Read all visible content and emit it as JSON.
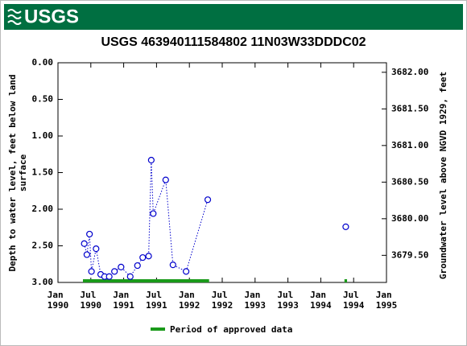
{
  "header": {
    "logo": "USGS"
  },
  "chart_data": {
    "type": "scatter",
    "title": "USGS 463940111584802 11N03W33DDDC02",
    "ylabel": [
      "Depth to water level, feet below land",
      "surface"
    ],
    "y2label": "Groundwater level above NGVD 1929, feet",
    "xlim": [
      1990,
      1995
    ],
    "xticks": [
      {
        "value": 1990,
        "label": "Jan 1990"
      },
      {
        "value": 1990.5,
        "label": "Jul 1990"
      },
      {
        "value": 1991,
        "label": "Jan 1991"
      },
      {
        "value": 1991.5,
        "label": "Jul 1991"
      },
      {
        "value": 1992,
        "label": "Jan 1992"
      },
      {
        "value": 1992.5,
        "label": "Jul 1992"
      },
      {
        "value": 1993,
        "label": "Jan 1993"
      },
      {
        "value": 1993.5,
        "label": "Jul 1993"
      },
      {
        "value": 1994,
        "label": "Jan 1994"
      },
      {
        "value": 1994.5,
        "label": "Jul 1994"
      },
      {
        "value": 1995,
        "label": "Jan 1995"
      }
    ],
    "ylim": [
      0,
      3
    ],
    "yticks": [
      {
        "value": 0,
        "label": "0.00"
      },
      {
        "value": 0.5,
        "label": "0.50"
      },
      {
        "value": 1,
        "label": "1.00"
      },
      {
        "value": 1.5,
        "label": "1.50"
      },
      {
        "value": 2,
        "label": "2.00"
      },
      {
        "value": 2.5,
        "label": "2.50"
      },
      {
        "value": 3,
        "label": "3.00"
      }
    ],
    "y2lim": [
      3682.13,
      3679.13
    ],
    "y2ticks": [
      {
        "value": 3682,
        "label": "3682.00"
      },
      {
        "value": 3681.5,
        "label": "3681.50"
      },
      {
        "value": 3681,
        "label": "3681.00"
      },
      {
        "value": 3680.5,
        "label": "3680.50"
      },
      {
        "value": 3680,
        "label": "3680.00"
      },
      {
        "value": 3679.5,
        "label": "3679.50"
      }
    ],
    "x": [
      1990.4,
      1990.44,
      1990.48,
      1990.51,
      1990.58,
      1990.65,
      1990.71,
      1990.78,
      1990.86,
      1990.96,
      1991.1,
      1991.21,
      1991.29,
      1991.38,
      1991.42,
      1991.45,
      1991.64,
      1991.75,
      1991.95,
      1992.28,
      1994.38
    ],
    "values": [
      2.47,
      2.62,
      2.34,
      2.85,
      2.54,
      2.89,
      2.92,
      2.92,
      2.85,
      2.79,
      2.92,
      2.77,
      2.66,
      2.64,
      1.33,
      2.06,
      1.6,
      2.76,
      2.85,
      1.87,
      2.24
    ],
    "color": "#0000cc",
    "approved_periods": [
      [
        1990.38,
        1992.3
      ],
      [
        1994.36,
        1994.4
      ]
    ],
    "approved_color": "#1a9a1a",
    "legend": "Period of approved data"
  }
}
